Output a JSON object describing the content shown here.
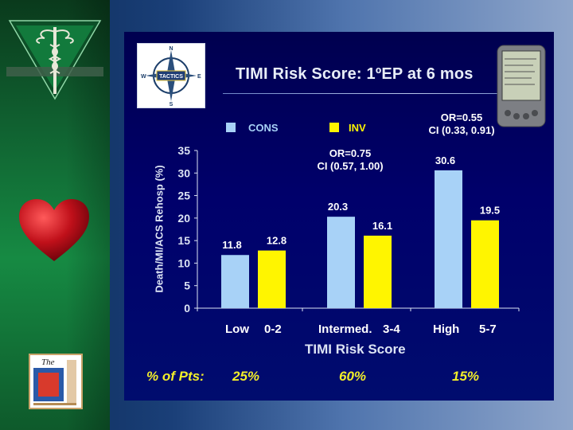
{
  "title": "TIMI Risk Score: 1ºEP at 6 mos",
  "colors": {
    "cons": "#a8d2f7",
    "inv": "#fff500",
    "slide_bg": "#00005e",
    "pct_text": "#f2ee2a",
    "left_panel": "#168a43"
  },
  "logos": {
    "compass_text": "TACTICS",
    "compass_n": "N",
    "compass_s": "S",
    "compass_e": "E",
    "compass_w": "W",
    "club_text": "The"
  },
  "icons": [
    "caduceus-icon",
    "heart-icon",
    "compass-icon",
    "pda-icon"
  ],
  "annotations": {
    "intermed_or": "OR=0.75",
    "intermed_ci": "CI (0.57, 1.00)",
    "high_or": "OR=0.55",
    "high_ci": "CI (0.33, 0.91)"
  },
  "pct_row": {
    "label": "% of Pts:",
    "values": [
      "25%",
      "60%",
      "15%"
    ]
  },
  "chart_data": {
    "type": "bar",
    "title": "TIMI Risk Score: 1ºEP at 6 mos",
    "xlabel": "TIMI Risk Score",
    "ylabel": "Death/MI/ACS Rehosp (%)",
    "ylim": [
      0,
      35
    ],
    "yticks": [
      "0",
      "5",
      "10",
      "15",
      "20",
      "25",
      "30",
      "35"
    ],
    "grid": false,
    "legend_position": "top",
    "categories": [
      {
        "risk": "Low",
        "score": "0-2"
      },
      {
        "risk": "Intermed.",
        "score": "3-4"
      },
      {
        "risk": "High",
        "score": "5-7"
      }
    ],
    "series": [
      {
        "name": "CONS",
        "values": [
          11.8,
          20.3,
          30.6
        ],
        "labels": [
          "11.8",
          "20.3",
          "30.6"
        ]
      },
      {
        "name": "INV",
        "values": [
          12.8,
          16.1,
          19.5
        ],
        "labels": [
          "12.8",
          "16.1",
          "19.5"
        ]
      }
    ]
  }
}
